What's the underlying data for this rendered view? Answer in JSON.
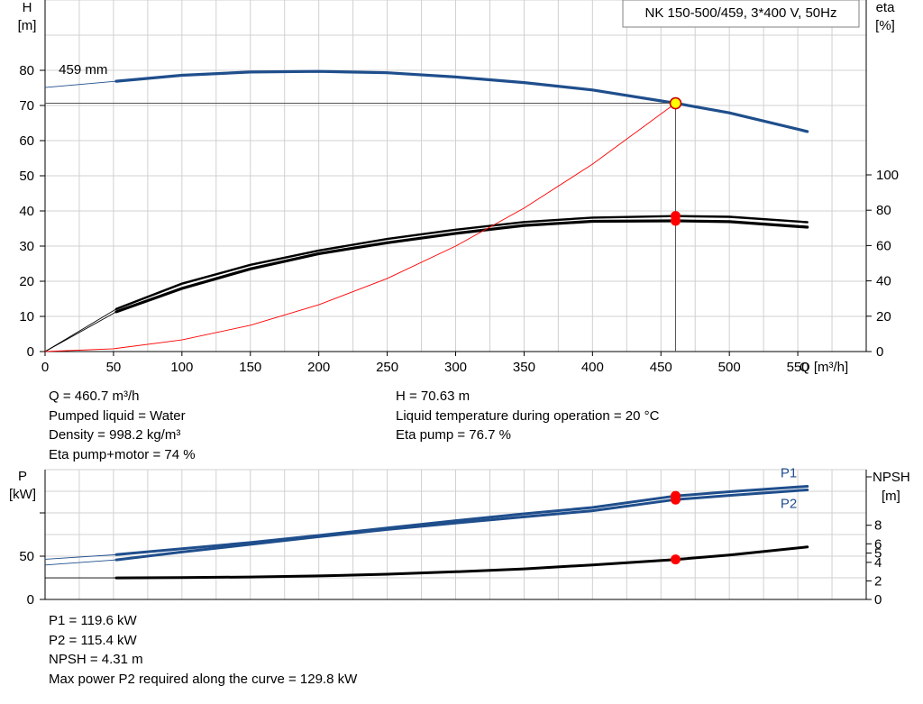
{
  "chart_data": [
    {
      "type": "line",
      "title": "NK 150-500/459, 3*400 V, 50Hz",
      "xlabel": "Q [m³/h]",
      "ylabel": "H",
      "ylabel_unit": "[m]",
      "y2label": "eta",
      "y2label_unit": "[%]",
      "xlim": [
        0,
        600
      ],
      "xticks": [
        0,
        50,
        100,
        150,
        200,
        250,
        300,
        350,
        400,
        450,
        500,
        550
      ],
      "ylim": [
        0,
        100
      ],
      "yticks": [
        0,
        10,
        20,
        30,
        40,
        50,
        60,
        70,
        80
      ],
      "y2ticks": [
        0,
        20,
        40,
        60,
        80,
        100
      ],
      "grid": true,
      "series": [
        {
          "name": "459 mm",
          "role": "head",
          "axis": "H",
          "color": "#1f4e8c",
          "x": [
            0,
            52,
            100,
            150,
            200,
            250,
            300,
            350,
            400,
            460.7,
            500,
            557
          ],
          "y": [
            75.1,
            76.9,
            78.6,
            79.5,
            79.7,
            79.3,
            78.1,
            76.5,
            74.4,
            70.63,
            67.9,
            62.6
          ]
        },
        {
          "role": "eta-pump",
          "axis": "eta",
          "color": "#000000",
          "x": [
            0,
            52,
            100,
            150,
            200,
            250,
            300,
            350,
            400,
            460.7,
            500,
            557
          ],
          "y": [
            0,
            24.1,
            38.4,
            49.1,
            57.2,
            63.7,
            69.0,
            73.3,
            75.8,
            76.7,
            76.3,
            73.2
          ]
        },
        {
          "role": "eta-pump-motor",
          "axis": "eta",
          "color": "#000000",
          "x": [
            0,
            52,
            100,
            150,
            200,
            250,
            300,
            350,
            400,
            460.7,
            500,
            557
          ],
          "y": [
            0,
            22.5,
            35.7,
            46.8,
            55.4,
            61.6,
            66.9,
            71.4,
            73.7,
            74.0,
            73.5,
            70.4
          ]
        },
        {
          "role": "system-curve",
          "axis": "H",
          "color": "#ff0000",
          "x": [
            0,
            50,
            100,
            150,
            200,
            250,
            300,
            350,
            400,
            460.7
          ],
          "y": [
            0,
            0.8,
            3.3,
            7.5,
            13.3,
            20.8,
            30.0,
            40.8,
            53.3,
            70.63
          ]
        }
      ],
      "annotations": [
        {
          "text": "459 mm",
          "x": 10,
          "y": 79
        }
      ],
      "operating_point": {
        "x": 460.7,
        "y": 70.63,
        "eta_pump": 76.7,
        "eta_pump_motor": 74.0
      }
    },
    {
      "type": "line",
      "ylabel": "P",
      "ylabel_unit": "[kW]",
      "y2label": "NPSH",
      "y2label_unit": "[m]",
      "xlim": [
        0,
        600
      ],
      "ylim": [
        0,
        150
      ],
      "yticks": [
        0,
        50
      ],
      "y2lim": [
        0,
        14
      ],
      "y2ticks": [
        0,
        2,
        4,
        5,
        6,
        8
      ],
      "grid": true,
      "series": [
        {
          "name": "P1",
          "role": "p1",
          "axis": "P",
          "color": "#1f4e8c",
          "x": [
            0,
            52,
            100,
            150,
            200,
            250,
            300,
            350,
            400,
            460.7,
            500,
            557
          ],
          "y": [
            46.5,
            51.8,
            58.5,
            65.7,
            74.0,
            82.6,
            91.0,
            99.0,
            106.3,
            119.6,
            124.5,
            130.7
          ]
        },
        {
          "name": "P2",
          "role": "p2",
          "axis": "P",
          "color": "#1f4e8c",
          "x": [
            0,
            52,
            100,
            150,
            200,
            250,
            300,
            350,
            400,
            460.7,
            500,
            557
          ],
          "y": [
            39.8,
            45.7,
            54.8,
            63.6,
            72.5,
            80.8,
            88.3,
            95.4,
            102.5,
            115.4,
            120.2,
            126.6
          ]
        },
        {
          "role": "npsh",
          "axis": "NPSH",
          "color": "#000000",
          "x": [
            0,
            52,
            100,
            150,
            200,
            250,
            300,
            350,
            400,
            460.7,
            500,
            557
          ],
          "y": [
            2.32,
            2.32,
            2.35,
            2.42,
            2.54,
            2.72,
            2.98,
            3.3,
            3.72,
            4.31,
            4.78,
            5.66
          ]
        }
      ],
      "operating_point": {
        "x": 460.7,
        "p1": 119.6,
        "p2": 115.4,
        "npsh": 4.31
      }
    }
  ],
  "info_top_left": {
    "q": "Q = 460.7 m³/h",
    "liquid": "Pumped liquid = Water",
    "density": "Density = 998.2 kg/m³",
    "eta_pump_motor": "Eta pump+motor = 74 %"
  },
  "info_top_right": {
    "h": "H = 70.63 m",
    "liquid_temp": "Liquid temperature during operation = 20 °C",
    "eta_pump": "Eta pump = 76.7 %"
  },
  "info_bottom": {
    "p1": "P1 = 119.6 kW",
    "p2": "P2 = 115.4 kW",
    "npsh": "NPSH = 4.31 m",
    "max_power": "Max power P2 required along the curve = 129.8 kW"
  },
  "colors": {
    "head_curve": "#1f4e8c",
    "eta_curves": "#000000",
    "system_curve": "#ff0000",
    "operating_marker_fill": "#ffff00",
    "operating_marker_stroke": "#cc0000",
    "duty_dot": "#ff0000",
    "grid": "#d0d0d0"
  }
}
